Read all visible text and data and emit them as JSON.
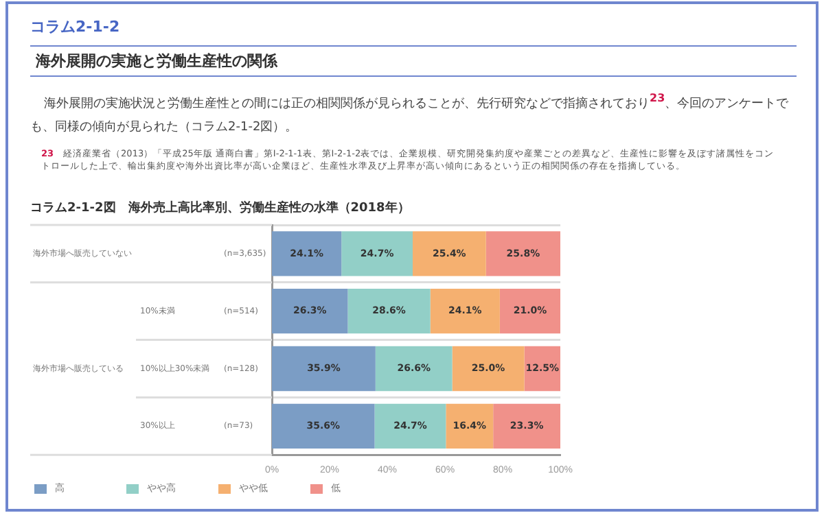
{
  "chart_data": {
    "type": "bar",
    "orientation": "horizontal",
    "stacked": true,
    "title": "コラム2-1-2図　海外売上高比率別、労働生産性の水準（2018年）",
    "annotations": [
      "コラム2-1-2",
      "海外展開の実施と労働生産性の関係",
      "海外展開の実施状況と労働生産性との間には正の相関関係が見られることが、先行研究などで指摘されており$^{23}$、今回のアンケートでも、同様の傾向が見られた（コラム2-1-2図）。",
      "23　経済産業省（2013）「平成25年版 通商白書」第Ⅰ-2-1-1表、第Ⅰ-2-1-2表では、企業規模、研究開発集約度や産業ごとの差異など、生産性に影響を及ぼす諸属性をコントロールした上で、輸出集約度や海外出資比率が高い企業ほど、生産性水準及び上昇率が高い傾向にあるという正の相関関係の存在を指摘している。",
      "海外市場へ販売している"
    ],
    "categories": [
      "海外市場へ販売していない (n=3,635)",
      "10%未満 (n=514)",
      "10%以上30%未満 (n=128)",
      "30%以上 (n=73)"
    ],
    "series": [
      {
        "name": "高",
        "color": "#7b9dc5",
        "values": [
          24.1,
          26.3,
          35.9,
          35.6
        ],
        "value_labels": [
          "24.1%",
          "26.3%",
          "35.9%",
          "35.6%"
        ]
      },
      {
        "name": "やや高",
        "color": "#92cfc7",
        "values": [
          24.7,
          28.6,
          26.6,
          24.7
        ],
        "value_labels": [
          "24.7%",
          "28.6%",
          "26.6%",
          "24.7%"
        ]
      },
      {
        "name": "やや低",
        "color": "#f5b070",
        "values": [
          25.4,
          24.1,
          25.0,
          16.4
        ],
        "value_labels": [
          "25.4%",
          "24.1%",
          "25.0%",
          "16.4%"
        ]
      },
      {
        "name": "低",
        "color": "#f0918a",
        "values": [
          25.8,
          21.0,
          12.5,
          23.3
        ],
        "value_labels": [
          "25.8%",
          "21.0%",
          "12.5%",
          "23.3%"
        ]
      }
    ],
    "xlim": [
      0,
      100
    ],
    "xticks": [
      {
        "value": 0,
        "label": "0%"
      },
      {
        "value": 20,
        "label": "20%"
      },
      {
        "value": 40,
        "label": "40%"
      },
      {
        "value": 60,
        "label": "60%"
      },
      {
        "value": 80,
        "label": "80%"
      },
      {
        "value": 100,
        "label": "100%"
      }
    ],
    "grid": "y",
    "legend": "bottom left"
  }
}
